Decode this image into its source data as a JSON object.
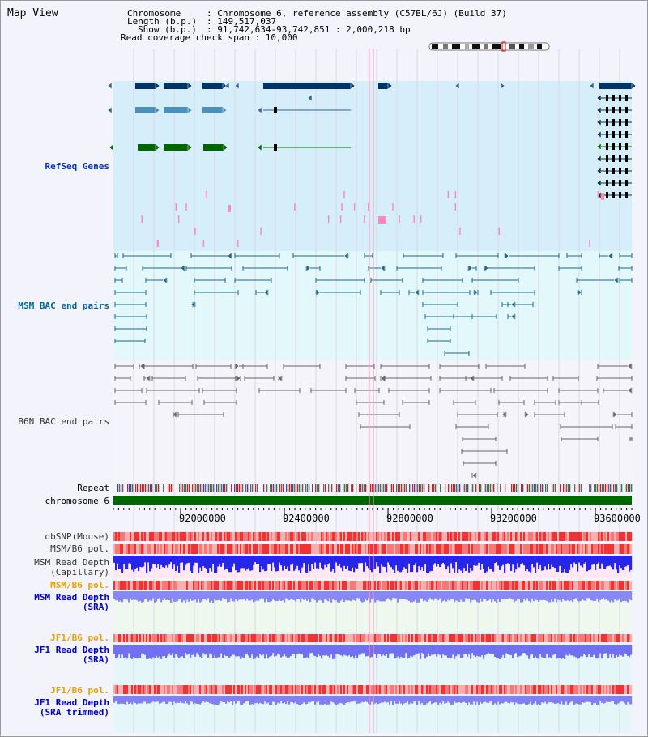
{
  "header": {
    "title": "Map View",
    "chromosome_key": "Chromosome",
    "chromosome_val": ": Chromosome 6, reference assembly (C57BL/6J) (Build 37)",
    "length_key": "Length (b.p.)",
    "length_val": ": 149,517,037",
    "show_key": "Show (b.p.)",
    "show_val": ": 91,742,634-93,742,851 : 2,000,218 bp",
    "coverage_line": "Read coverage check span : 10,000"
  },
  "tracks": {
    "refseq": "RefSeq Genes",
    "msm_bac": "MSM BAC end pairs",
    "b6n_bac": "B6N BAC end pairs",
    "repeat": "Repeat",
    "chromosome": "chromosome 6",
    "dbsnp": "dbSNP(Mouse)",
    "msm_b6_pol": "MSM/B6 pol.",
    "msm_read_depth": "MSM Read Depth",
    "capillary": "(Capillary)",
    "msm_b6_pol_2": "MSM/B6 pol.",
    "msm_read_depth_sra": "MSM Read Depth",
    "sra": "(SRA)",
    "jf1_b6_pol": "JF1/B6 pol.",
    "jf1_read_depth": "JF1 Read Depth",
    "sra_2": "(SRA)",
    "jf1_b6_pol_2": "JF1/B6 pol.",
    "jf1_read_depth_trim": "JF1 Read Depth",
    "sra_trimmed": "(SRA trimmed)"
  },
  "axis": {
    "ticks": [
      "92000000",
      "92400000",
      "92800000",
      "93200000",
      "93600000"
    ]
  },
  "colors": {
    "refseq_bg": "#d6eefa",
    "msm_bg": "#e2f8fa",
    "b6n_bg": "#f4f4fa",
    "chrom_bar": "#006600",
    "depth_blue": "#2222ee",
    "depth_light": "#8080ff",
    "snp_red": "#ee3333"
  },
  "icons": [
    "chromosome-ideogram-icon",
    "strand-arrow-icon"
  ]
}
